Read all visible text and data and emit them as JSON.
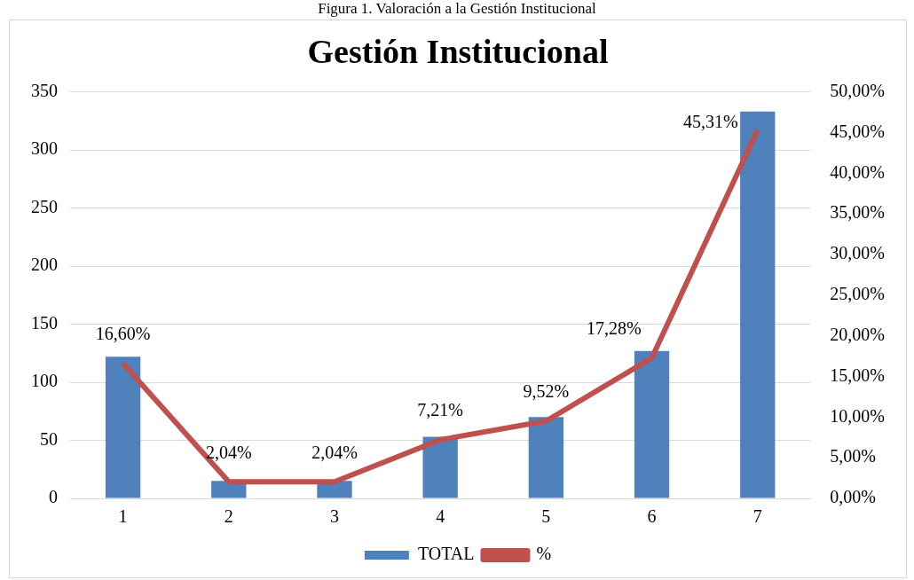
{
  "chart_data": {
    "type": "bar",
    "title": "Gestión Institucional",
    "annotations": [
      "Figura 1. Valoración a la Gestión Institucional"
    ],
    "categories": [
      "1",
      "2",
      "3",
      "4",
      "5",
      "6",
      "7"
    ],
    "series": [
      {
        "name": "TOTAL",
        "color": "#4f81bd",
        "values": [
          122,
          15,
          15,
          53,
          70,
          127,
          333
        ]
      },
      {
        "name": "%",
        "type": "line",
        "axis": "y2",
        "color": "#c0504d",
        "values": [
          16.6,
          2.04,
          2.04,
          7.21,
          9.52,
          17.28,
          45.31
        ],
        "value_labels": [
          "16,60%",
          "2,04%",
          "2,04%",
          "7,21%",
          "9,52%",
          "17,28%",
          "45,31%"
        ]
      }
    ],
    "ylim": [
      0,
      350
    ],
    "yticks": [
      0,
      50,
      100,
      150,
      200,
      250,
      300,
      350
    ],
    "y2lim": [
      0,
      50
    ],
    "y2ticks": [
      {
        "value": 0,
        "label": "0,00%"
      },
      {
        "value": 5,
        "label": "5,00%"
      },
      {
        "value": 10,
        "label": "10,00%"
      },
      {
        "value": 15,
        "label": "15,00%"
      },
      {
        "value": 20,
        "label": "20,00%"
      },
      {
        "value": 25,
        "label": "25,00%"
      },
      {
        "value": 30,
        "label": "30,00%"
      },
      {
        "value": 35,
        "label": "35,00%"
      },
      {
        "value": 40,
        "label": "40,00%"
      },
      {
        "value": 45,
        "label": "45,00%"
      },
      {
        "value": 50,
        "label": "50,00%"
      }
    ],
    "grid": "y",
    "legend": "bottom",
    "marker": "none"
  }
}
